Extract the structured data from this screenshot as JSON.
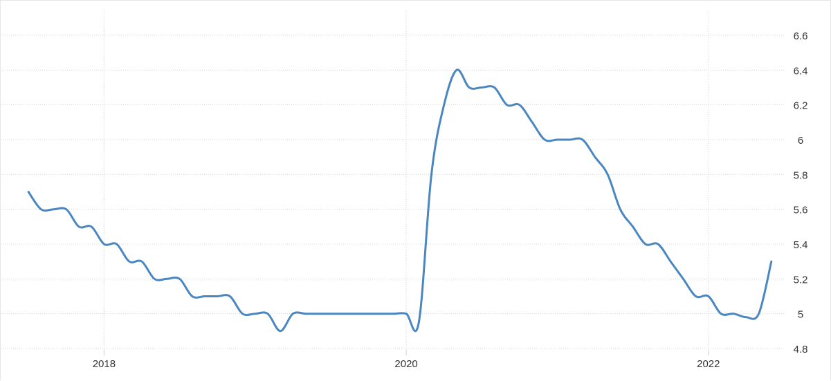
{
  "chart_data": {
    "type": "line",
    "title": "",
    "xlabel": "",
    "ylabel": "",
    "x_tick_labels": [
      "2018",
      "2020",
      "2022"
    ],
    "x_ticks": [
      "2018-01",
      "2020-01",
      "2022-01"
    ],
    "y_ticks": [
      4.8,
      5,
      5.2,
      5.4,
      5.6,
      5.8,
      6,
      6.2,
      6.4,
      6.6
    ],
    "y_tick_labels": [
      "4.8",
      "5",
      "5.2",
      "5.4",
      "5.6",
      "5.8",
      "6",
      "6.2",
      "6.4",
      "6.6"
    ],
    "ylim": [
      4.8,
      6.6
    ],
    "xlim": [
      "2017-06",
      "2022-07"
    ],
    "grid": true,
    "y_axis_side": "right",
    "line_color": "#4a86c0",
    "series": [
      {
        "x": [
          "2017-07",
          "2017-08",
          "2017-09",
          "2017-10",
          "2017-11",
          "2017-12",
          "2018-01",
          "2018-02",
          "2018-03",
          "2018-04",
          "2018-05",
          "2018-06",
          "2018-07",
          "2018-08",
          "2018-09",
          "2018-10",
          "2018-11",
          "2018-12",
          "2019-01",
          "2019-02",
          "2019-03",
          "2019-04",
          "2019-05",
          "2019-06",
          "2019-07",
          "2019-08",
          "2019-09",
          "2019-10",
          "2019-11",
          "2019-12",
          "2020-01",
          "2020-02",
          "2020-03",
          "2020-04",
          "2020-05",
          "2020-06",
          "2020-07",
          "2020-08",
          "2020-09",
          "2020-10",
          "2020-11",
          "2020-12",
          "2021-01",
          "2021-02",
          "2021-03",
          "2021-04",
          "2021-05",
          "2021-06",
          "2021-07",
          "2021-08",
          "2021-09",
          "2021-10",
          "2021-11",
          "2021-12",
          "2022-01",
          "2022-02",
          "2022-03",
          "2022-04",
          "2022-05",
          "2022-06"
        ],
        "values": [
          5.7,
          5.6,
          5.6,
          5.6,
          5.5,
          5.5,
          5.4,
          5.4,
          5.3,
          5.3,
          5.2,
          5.2,
          5.2,
          5.1,
          5.1,
          5.1,
          5.1,
          5.0,
          5.0,
          5.0,
          4.9,
          5.0,
          5.0,
          5.0,
          5.0,
          5.0,
          5.0,
          5.0,
          5.0,
          5.0,
          5.0,
          4.95,
          5.8,
          6.2,
          6.4,
          6.3,
          6.3,
          6.3,
          6.2,
          6.2,
          6.1,
          6.0,
          6.0,
          6.0,
          6.0,
          5.9,
          5.8,
          5.6,
          5.5,
          5.4,
          5.4,
          5.3,
          5.2,
          5.1,
          5.1,
          5.0,
          5.0,
          4.98,
          5.0,
          5.3
        ]
      }
    ]
  }
}
